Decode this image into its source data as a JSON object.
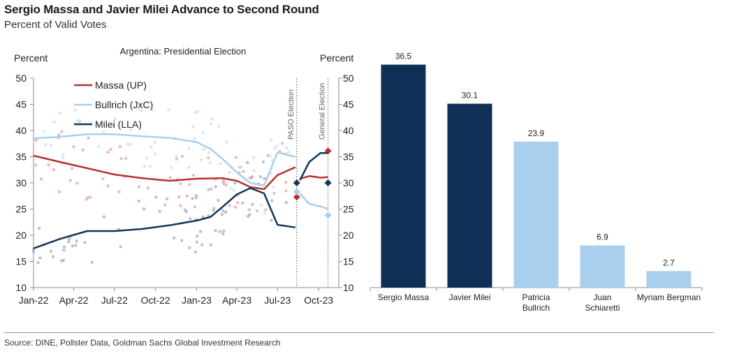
{
  "header": {
    "title": "Sergio Massa and Javier Milei Advance to Second Round",
    "subtitle": "Percent of Valid Votes"
  },
  "footer": {
    "source": "Source: DINE, Pollster Data, Goldman Sachs Global Investment Research"
  },
  "colors": {
    "massa": "#b7312c",
    "bullrich": "#a9cfee",
    "milei": "#12355b",
    "bar_dark": "#0f2f57",
    "bar_light": "#a9cfee"
  },
  "chart_data": [
    {
      "type": "line",
      "title": "Argentina: Presidential Election",
      "ylabel_left": "Percent",
      "ylabel_right": "Percent",
      "ylim": [
        10,
        50
      ],
      "yticks": [
        10,
        15,
        20,
        25,
        30,
        35,
        40,
        45,
        50
      ],
      "x_ticks": [
        "Jan-22",
        "Apr-22",
        "Jul-22",
        "Oct-22",
        "Jan-23",
        "Apr-23",
        "Jul-23",
        "Oct-23"
      ],
      "x_tick_dates": [
        "2022-01",
        "2022-04",
        "2022-07",
        "2022-10",
        "2023-01",
        "2023-04",
        "2023-07",
        "2023-10"
      ],
      "x_range": [
        "2022-01",
        "2023-11"
      ],
      "grid": false,
      "legend_position": "top-left",
      "annotations": [
        {
          "label": "PASO Election",
          "date": "2023-08-13"
        },
        {
          "label": "General Election",
          "date": "2023-10-22"
        }
      ],
      "series": [
        {
          "name": "Massa (UP)",
          "color_key": "massa",
          "points": [
            [
              "2022-01",
              35.2
            ],
            [
              "2022-03",
              34.0
            ],
            [
              "2022-05",
              32.8
            ],
            [
              "2022-07",
              31.6
            ],
            [
              "2022-09",
              30.9
            ],
            [
              "2022-11",
              30.4
            ],
            [
              "2023-01",
              30.8
            ],
            [
              "2023-03",
              30.9
            ],
            [
              "2023-04",
              30.4
            ],
            [
              "2023-05",
              29.2
            ],
            [
              "2023-06",
              28.8
            ],
            [
              "2023-07",
              31.5
            ],
            [
              "2023-08-10",
              33.0
            ]
          ],
          "post_paso": [
            [
              "2023-08-20",
              30.8
            ],
            [
              "2023-09-10",
              31.3
            ],
            [
              "2023-10-05",
              31.0
            ],
            [
              "2023-10-22",
              31.1
            ]
          ],
          "paso_result": 27.3,
          "general_result": 36.1
        },
        {
          "name": "Bullrich (JxC)",
          "color_key": "bullrich",
          "points": [
            [
              "2022-01",
              38.5
            ],
            [
              "2022-03",
              38.8
            ],
            [
              "2022-05",
              39.3
            ],
            [
              "2022-07",
              39.3
            ],
            [
              "2022-09",
              38.9
            ],
            [
              "2022-11",
              38.6
            ],
            [
              "2023-01",
              37.8
            ],
            [
              "2023-02",
              36.5
            ],
            [
              "2023-03",
              34.5
            ],
            [
              "2023-04",
              32.0
            ],
            [
              "2023-05",
              30.0
            ],
            [
              "2023-06",
              29.5
            ],
            [
              "2023-07",
              35.8
            ],
            [
              "2023-08-10",
              35.0
            ]
          ],
          "post_paso": [
            [
              "2023-08-20",
              28.0
            ],
            [
              "2023-09-10",
              26.0
            ],
            [
              "2023-10-05",
              25.5
            ],
            [
              "2023-10-22",
              25.0
            ]
          ],
          "paso_result": 28.3,
          "general_result": 23.8
        },
        {
          "name": "Milei (LLA)",
          "color_key": "milei",
          "points": [
            [
              "2022-01",
              17.5
            ],
            [
              "2022-03",
              19.3
            ],
            [
              "2022-05",
              20.8
            ],
            [
              "2022-07",
              20.8
            ],
            [
              "2022-09",
              21.2
            ],
            [
              "2022-11",
              21.9
            ],
            [
              "2023-01",
              22.8
            ],
            [
              "2023-02",
              23.5
            ],
            [
              "2023-03",
              25.5
            ],
            [
              "2023-04",
              27.8
            ],
            [
              "2023-05",
              29.0
            ],
            [
              "2023-06",
              28.0
            ],
            [
              "2023-07",
              22.0
            ],
            [
              "2023-08-10",
              21.5
            ]
          ],
          "post_paso": [
            [
              "2023-08-20",
              30.5
            ],
            [
              "2023-09-10",
              34.0
            ],
            [
              "2023-10-05",
              35.7
            ],
            [
              "2023-10-22",
              35.7
            ]
          ],
          "paso_result": 30.0,
          "general_result": 30.0
        }
      ]
    },
    {
      "type": "bar",
      "categories": [
        "Sergio Massa",
        "Javier Milei",
        "Patricia Bullrich",
        "Juan Schiaretti",
        "Myriam Bergman"
      ],
      "values": [
        36.5,
        30.1,
        23.9,
        6.9,
        2.7
      ],
      "value_labels": [
        "36.5",
        "30.1",
        "23.9",
        "6.9",
        "2.7"
      ],
      "bar_colors": [
        "bar_dark",
        "bar_dark",
        "bar_light",
        "bar_light",
        "bar_light"
      ],
      "ylim": [
        0,
        40
      ]
    }
  ]
}
